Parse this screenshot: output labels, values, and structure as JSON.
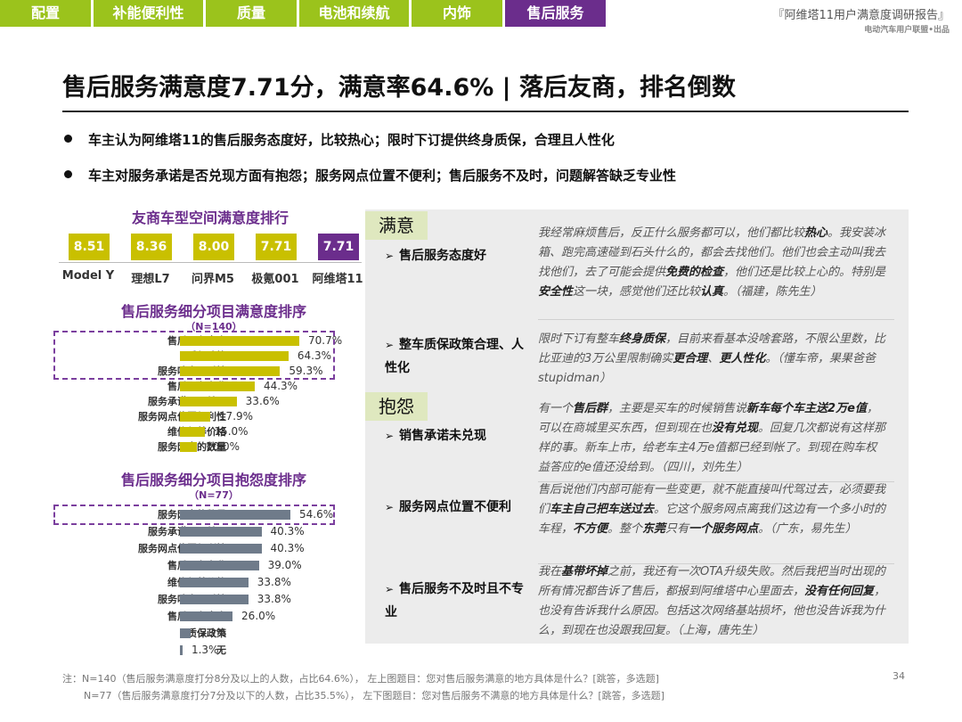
{
  "nav": {
    "tabs": [
      "配置",
      "补能便利性",
      "质量",
      "电池和续航",
      "内饰",
      "售后服务"
    ],
    "active_index": 5
  },
  "header": {
    "report_title": "『阿维塔11用户满意度调研报告』",
    "report_sub": "电动汽车用户联盟•出品",
    "main_title": "售后服务满意度7.71分，满意率64.6% | 落后友商，排名倒数"
  },
  "bullets": [
    "车主认为阿维塔11的售后服务态度好，比较热心；限时下订提供终身质保，合理且人性化",
    "车主对服务承诺是否兑现方面有抱怨；服务网点位置不便利；售后服务不及时，问题解答缺乏专业性"
  ],
  "colors": {
    "green": "#9bc31c",
    "purple": "#6b2d8c",
    "gold_bar": "#c9c000",
    "gray_bar": "#6f7b8a"
  },
  "chart_data": [
    {
      "type": "bar",
      "title": "友商车型空间满意度排行",
      "categories": [
        "Model Y",
        "理想L7",
        "问界M5",
        "极氪001",
        "阿维塔11"
      ],
      "values": [
        8.51,
        8.36,
        8.0,
        7.71,
        7.71
      ],
      "labels": [
        "8.51",
        "8.36",
        "8.00",
        "7.71",
        "7.71"
      ],
      "highlight_index": 4
    },
    {
      "type": "bar",
      "orientation": "horizontal",
      "title": "售后服务细分项目满意度排序",
      "note": "（N=140）",
      "categories": [
        "售后服务态度",
        "质保政策",
        "服务响应及时性",
        "售后服务专业",
        "服务承诺是否兑现",
        "服务网点位置便利性",
        "维修保养价格",
        "服务网点的数量"
      ],
      "values": [
        70.7,
        64.3,
        59.3,
        44.3,
        33.6,
        17.9,
        15.0,
        10.0
      ],
      "labels": [
        "70.7%",
        "64.3%",
        "59.3%",
        "44.3%",
        "33.6%",
        "17.9%",
        "15.0%",
        "10.0%"
      ],
      "highlight_count": 3
    },
    {
      "type": "bar",
      "orientation": "horizontal",
      "title": "售后服务细分项目抱怨度排序",
      "note": "（N=77）",
      "categories": [
        "服务网点的数量",
        "服务承诺是否兑现",
        "服务网点位置便利性",
        "售后服务专业",
        "维修保养价格",
        "服务响应及时性",
        "售后服务态度",
        "质保政策",
        "无"
      ],
      "values": [
        54.6,
        40.3,
        40.3,
        39.0,
        33.8,
        33.8,
        26.0,
        5.2,
        1.3
      ],
      "labels": [
        "54.6%",
        "40.3%",
        "40.3%",
        "39.0%",
        "33.8%",
        "33.8%",
        "26.0%",
        "5.2%",
        "1.3%"
      ],
      "highlight_count": 1
    }
  ],
  "panel": {
    "satisfied_tag": "满意",
    "complaint_tag": "抱怨",
    "items": [
      {
        "aspect": "售后服务态度好",
        "quote": [
          [
            "我经常麻烦售后，反正什么服务都可以，他们都比较",
            false
          ],
          [
            "热心",
            true
          ],
          [
            "。我安装冰箱、跑完高速碰到石头什么的，都会去找他们。他们也会主动叫我去找他们，去了可能会提供",
            false
          ],
          [
            "免费的检查",
            true
          ],
          [
            "，他们还是比较上心的。特别是",
            false
          ],
          [
            "安全性",
            true
          ],
          [
            "这一块，感觉他们还比较",
            false
          ],
          [
            "认真",
            true
          ],
          [
            "。（福建，陈先生）",
            false
          ]
        ]
      },
      {
        "aspect": "整车质保政策合理、人性化",
        "quote": [
          [
            "限时下订有整车",
            false
          ],
          [
            "终身质保",
            true
          ],
          [
            "，目前来看基本没啥套路，不限公里数，比比亚迪的3万公里限制确实",
            false
          ],
          [
            "更合理",
            true
          ],
          [
            "、",
            false
          ],
          [
            "更人性化",
            true
          ],
          [
            "。（懂车帝，果果爸爸stupidman）",
            false
          ]
        ]
      },
      {
        "aspect": "销售承诺未兑现",
        "quote": [
          [
            "有一个",
            false
          ],
          [
            "售后群",
            true
          ],
          [
            "，主要是买车的时候销售说",
            false
          ],
          [
            "新车每个车主送2万e值",
            true
          ],
          [
            "，可以在商城里买东西，但到现在也",
            false
          ],
          [
            "没有兑现",
            true
          ],
          [
            "。回复几次都说有这样那样的事。新车上市，给老车主4万e值都已经到帐了。到现在购车权益答应的e值还没给到。（四川，刘先生）",
            false
          ]
        ]
      },
      {
        "aspect": "服务网点位置不便利",
        "quote": [
          [
            "售后说他们内部可能有一些变更，就不能直接叫代驾过去，必须要我们",
            false
          ],
          [
            "车主自己把车送过去",
            true
          ],
          [
            "。它这个服务网点离我们这边有一个多小时的车程，",
            false
          ],
          [
            "不方便",
            true
          ],
          [
            "。整个",
            false
          ],
          [
            "东莞",
            true
          ],
          [
            "只有",
            false
          ],
          [
            "一个服务网点",
            true
          ],
          [
            "。（广东，易先生）",
            false
          ]
        ]
      },
      {
        "aspect": "售后服务不及时且不专业",
        "quote": [
          [
            "我在",
            false
          ],
          [
            "基带坏掉",
            true
          ],
          [
            "之前，我还有一次OTA升级失败。然后我把当时出现的所有情况都告诉了售后，都报到阿维塔中心里面去，",
            false
          ],
          [
            "没有任何回复",
            true
          ],
          [
            "，也没有告诉我什么原因。包括这次网络基站损坏，他也没告诉我为什么，到现在也没跟我回复。（上海，唐先生）",
            false
          ]
        ]
      }
    ]
  },
  "footnote": {
    "line1": "注：N=140（售后服务满意度打分8分及以上的人数，占比64.6%），  左上图题目：您对售后服务满意的地方具体是什么？[跳答，多选题]",
    "line2": "N=77（售后服务满意度打分7分及以下的人数，占比35.5%），  左下图题目：您对售后服务不满意的地方具体是什么？[跳答，多选题]",
    "page": "34"
  }
}
